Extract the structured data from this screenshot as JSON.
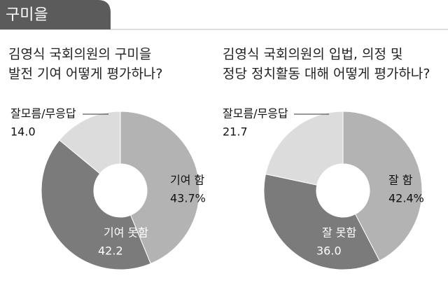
{
  "header": {
    "title": "구미을"
  },
  "chart_data": [
    {
      "type": "donut",
      "title": [
        "김영식 국회의원의 구미을",
        "발전 기여 어떻게 평가하나?"
      ],
      "categories": [
        "기여 함",
        "기여 못함",
        "잘모름/무응답"
      ],
      "values": [
        43.7,
        42.2,
        14.0
      ],
      "value_labels": [
        "43.7%",
        "42.2",
        "14.0"
      ],
      "colors": [
        "#b3b3b3",
        "#7b7b7b",
        "#dcdcdc"
      ]
    },
    {
      "type": "donut",
      "title": [
        "김영식 국회의원의 입법, 의정 및",
        "정당 정치활동 대해 어떻게 평가하나?"
      ],
      "categories": [
        "잘 함",
        "잘 못함",
        "잘모름/무응답"
      ],
      "values": [
        42.4,
        36.0,
        21.7
      ],
      "value_labels": [
        "42.4%",
        "36.0",
        "21.7"
      ],
      "colors": [
        "#b3b3b3",
        "#7b7b7b",
        "#dcdcdc"
      ]
    }
  ]
}
